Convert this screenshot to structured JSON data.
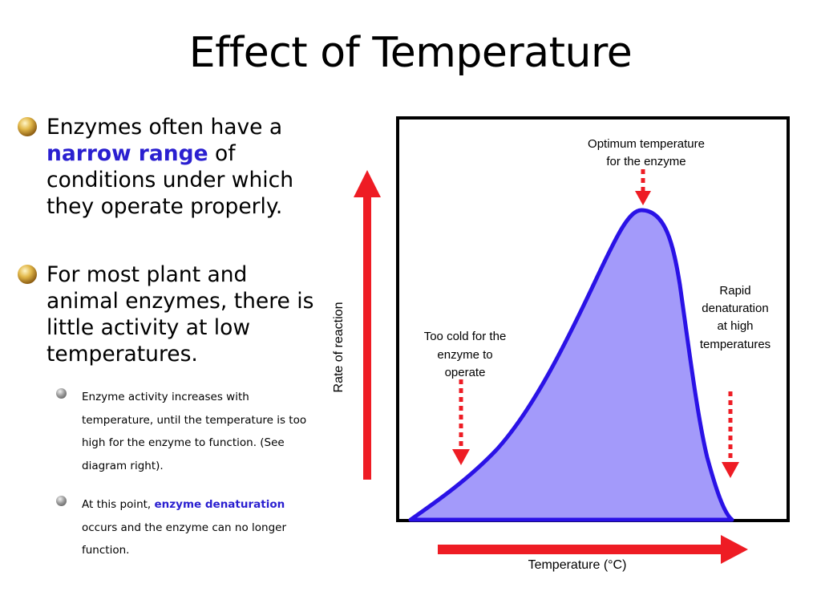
{
  "slide": {
    "title": "Effect of Temperature"
  },
  "bullets": [
    {
      "pre": "Enzymes often have a ",
      "highlight": "narrow range",
      "post": " of conditions under which they operate properly."
    },
    {
      "text": "For most plant and animal enzymes, there is little activity at low temperatures."
    }
  ],
  "sub_bullets": [
    {
      "text": "Enzyme activity increases with temperature, until the temperature is too high for the enzyme to function. (See diagram right)."
    },
    {
      "pre": "At this point, ",
      "highlight": "enzyme denaturation",
      "post": " occurs and the enzyme can no longer function."
    }
  ],
  "diagram": {
    "y_axis_label": "Rate of reaction",
    "x_axis_label": "Temperature (°C)",
    "annotation_optimum": [
      "Optimum temperature",
      "for the enzyme"
    ],
    "annotation_cold": [
      "Too cold for the",
      "enzyme to",
      "operate"
    ],
    "annotation_hot": [
      "Rapid",
      "denaturation",
      "at high",
      "temperatures"
    ],
    "colors": {
      "curve_fill": "#a39afa",
      "curve_stroke": "#2a12e6",
      "arrows": "#ee1c24",
      "highlight_text": "#2a1fd0"
    }
  }
}
